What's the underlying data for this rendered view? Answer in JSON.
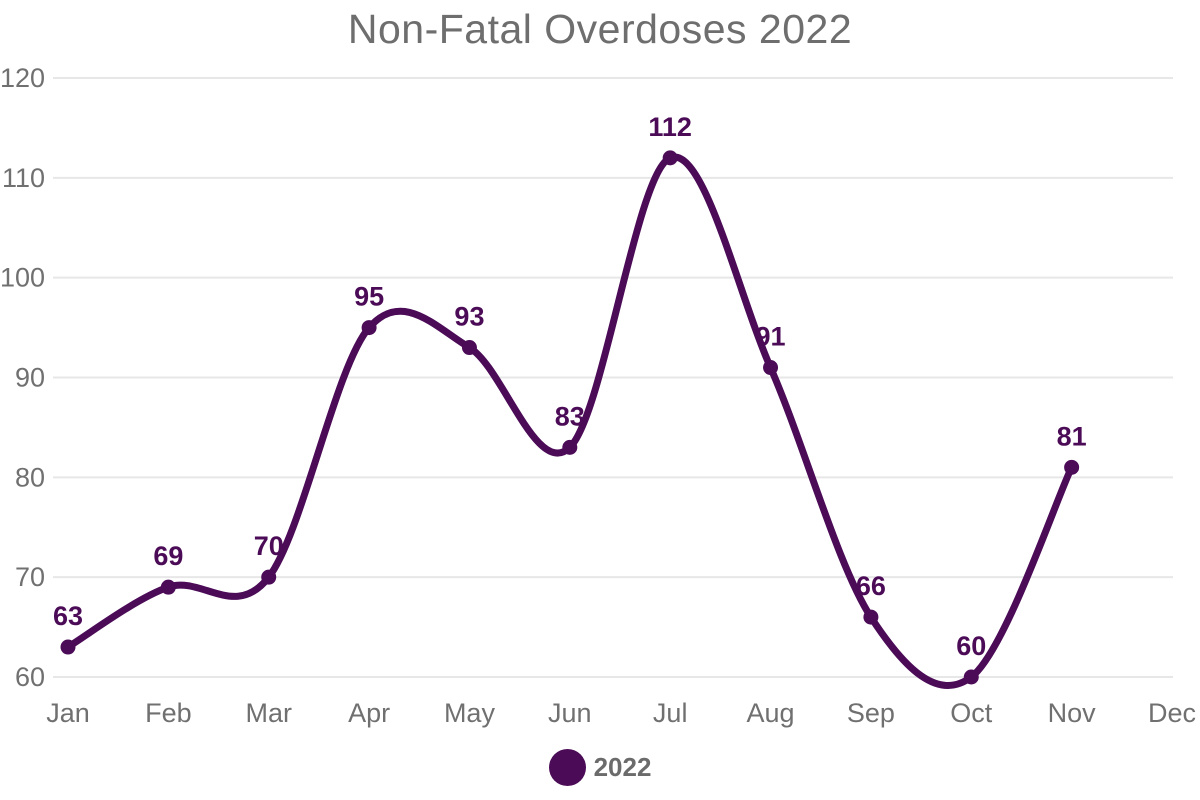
{
  "title": "Non-Fatal Overdoses 2022",
  "legend": {
    "items": [
      {
        "label": "2022"
      }
    ]
  },
  "colors": {
    "line": "#4b0b57",
    "point": "#4b0b57",
    "value_label": "#4b0b57",
    "title": "#6e6e6e",
    "axis_text": "#707070",
    "legend_text": "#6b6b6b",
    "gridline": "#e7e7e7",
    "background": "#ffffff"
  },
  "chart_data": {
    "type": "line",
    "title": "Non-Fatal Overdoses 2022",
    "categories": [
      "Jan",
      "Feb",
      "Mar",
      "Apr",
      "May",
      "Jun",
      "Jul",
      "Aug",
      "Sep",
      "Oct",
      "Nov",
      "Dec"
    ],
    "series": [
      {
        "name": "2022",
        "values": [
          63,
          69,
          70,
          95,
          93,
          83,
          112,
          91,
          66,
          60,
          81,
          null
        ]
      }
    ],
    "xlabel": "",
    "ylabel": "",
    "ylim": [
      60,
      120
    ],
    "yticks": [
      60,
      70,
      80,
      90,
      100,
      110,
      120
    ],
    "grid": true,
    "grid_axis": "y",
    "axis_lines": false,
    "line_style": "smooth",
    "point_markers": true,
    "point_labels": true,
    "legend_position": "bottom"
  }
}
